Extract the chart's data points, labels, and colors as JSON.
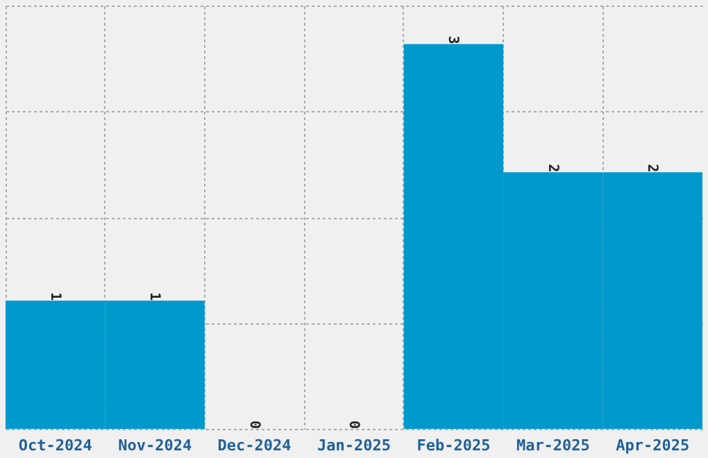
{
  "chart_data": {
    "type": "bar",
    "categories": [
      "Oct-2024",
      "Nov-2024",
      "Dec-2024",
      "Jan-2025",
      "Feb-2025",
      "Mar-2025",
      "Apr-2025"
    ],
    "values": [
      1,
      1,
      0,
      0,
      3,
      2,
      2
    ],
    "color": "#0099cc",
    "ylim": [
      0,
      3.3
    ],
    "yticks": [
      {
        "value": 0,
        "label": null
      },
      {
        "value": 0.825,
        "label": null
      },
      {
        "value": 1.65,
        "label": null
      },
      {
        "value": 2.475,
        "label": null
      },
      {
        "value": 3.3,
        "label": null
      }
    ],
    "tick_labels": "x",
    "grid": true,
    "data_labels": true
  }
}
